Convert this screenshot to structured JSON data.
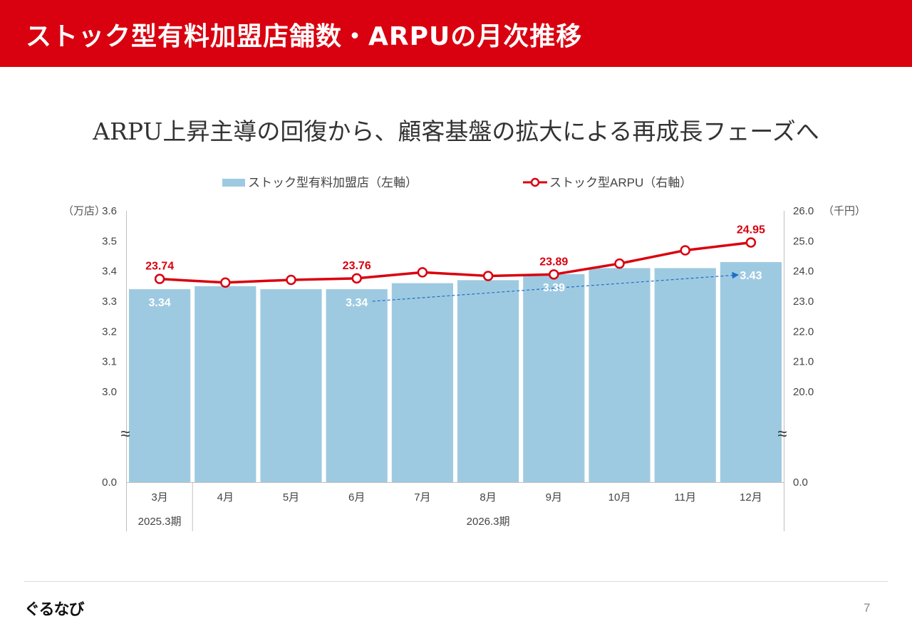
{
  "header": {
    "title": "ストック型有料加盟店舗数・ARPUの月次推移"
  },
  "subtitle": "ARPU上昇主導の回復から、顧客基盤の拡大による再成長フェーズへ",
  "footer": {
    "logo": "ぐるなび",
    "page_number": "7"
  },
  "colors": {
    "bar": "#9ecae1",
    "line": "#d9000f",
    "header": "#d9000f",
    "trend_arrow": "#1f6fc6"
  },
  "chart_data": {
    "type": "bar",
    "categories": [
      "3月",
      "4月",
      "5月",
      "6月",
      "7月",
      "8月",
      "9月",
      "10月",
      "11月",
      "12月"
    ],
    "periods": [
      {
        "label": "2025.3期",
        "from": 0,
        "to": 0
      },
      {
        "label": "2026.3期",
        "from": 1,
        "to": 9
      }
    ],
    "legend": {
      "bar": "ストック型有料加盟店（左軸）",
      "line": "ストック型ARPU（右軸）",
      "position": "top-center"
    },
    "series": [
      {
        "name": "ストック型有料加盟店（左軸）",
        "type": "bar",
        "axis": "left",
        "values": [
          3.34,
          3.35,
          3.34,
          3.34,
          3.36,
          3.37,
          3.39,
          3.41,
          3.41,
          3.43
        ],
        "labels": [
          "3.34",
          "",
          "",
          "3.34",
          "",
          "",
          "3.39",
          "",
          "",
          "3.43"
        ]
      },
      {
        "name": "ストック型ARPU（右軸）",
        "type": "line",
        "axis": "right",
        "values": [
          23.74,
          23.62,
          23.71,
          23.76,
          23.96,
          23.84,
          23.89,
          24.25,
          24.69,
          24.95
        ],
        "labels": [
          "23.74",
          "",
          "",
          "23.76",
          "",
          "",
          "23.89",
          "",
          "",
          "24.95"
        ]
      }
    ],
    "left_axis": {
      "unit": "（万店）",
      "ticks": [
        "3.6",
        "3.5",
        "3.4",
        "3.3",
        "3.2",
        "3.1",
        "3.0",
        "0.0"
      ],
      "range": [
        3.0,
        3.6
      ],
      "break": true,
      "baseline": "0.0"
    },
    "right_axis": {
      "unit": "（千円）",
      "ticks": [
        "26.0",
        "25.0",
        "24.0",
        "23.0",
        "22.0",
        "21.0",
        "20.0",
        "0.0"
      ],
      "range": [
        20.0,
        26.0
      ],
      "break": true,
      "baseline": "0.0"
    },
    "trend_arrow": {
      "from_index": 3,
      "to_index": 9,
      "style": "dashed"
    },
    "break_symbol": "≈",
    "grid": false
  }
}
